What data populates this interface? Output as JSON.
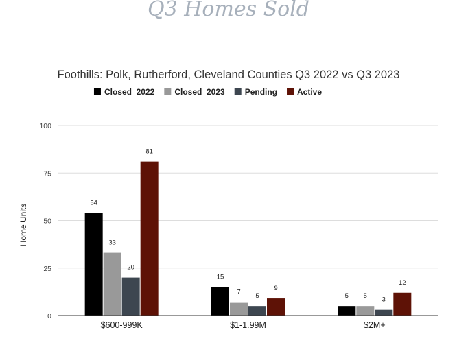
{
  "page": {
    "heading": "Q3 Homes Sold"
  },
  "chart_data": {
    "type": "bar",
    "title": "Foothills: Polk, Rutherford, Cleveland Counties Q3 2022 vs Q3 2023",
    "xlabel": "",
    "ylabel": "Home Units",
    "ylim": [
      0,
      100
    ],
    "yticks": [
      0,
      25,
      50,
      75,
      100
    ],
    "grid": true,
    "legend_position": "top",
    "categories": [
      "$600-999K",
      "$1-1.99M",
      "$2M+"
    ],
    "series": [
      {
        "name": "Closed  2022",
        "color": "#000000",
        "values": [
          54,
          15,
          5
        ]
      },
      {
        "name": "Closed  2023",
        "color": "#999999",
        "values": [
          33,
          7,
          5
        ]
      },
      {
        "name": "Pending",
        "color": "#3d4650",
        "values": [
          20,
          5,
          3
        ]
      },
      {
        "name": "Active",
        "color": "#5e1206",
        "values": [
          81,
          9,
          12
        ]
      }
    ]
  }
}
